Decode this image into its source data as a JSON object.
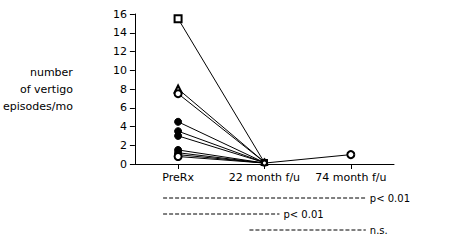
{
  "chart_data": {
    "type": "line",
    "categories": [
      "PreRx",
      "22 month f/u",
      "74 month f/u"
    ],
    "ylabel": [
      "number",
      "of vertigo",
      "episodes/mo"
    ],
    "ylim": [
      0,
      16
    ],
    "yticks": [
      0,
      2,
      4,
      6,
      8,
      10,
      12,
      14,
      16
    ],
    "grid": false,
    "color": "#000000",
    "series": [
      {
        "marker": "open-square",
        "values": [
          15.5,
          0.15,
          null
        ]
      },
      {
        "marker": "open-triangle",
        "values": [
          8.0,
          0.2,
          null
        ]
      },
      {
        "marker": "open-circle",
        "values": [
          7.5,
          0.2,
          null
        ]
      },
      {
        "marker": "filled-circle",
        "values": [
          4.5,
          0.15,
          null
        ]
      },
      {
        "marker": "filled-circle",
        "values": [
          3.5,
          0.15,
          null
        ]
      },
      {
        "marker": "filled-circle",
        "values": [
          3.0,
          0.15,
          null
        ]
      },
      {
        "marker": "filled-circle",
        "values": [
          1.5,
          0.1,
          null
        ]
      },
      {
        "marker": "filled-circle",
        "values": [
          1.2,
          0.1,
          null
        ]
      },
      {
        "marker": "filled-circle",
        "values": [
          1.0,
          0.1,
          null
        ]
      },
      {
        "marker": "open-circle",
        "values": [
          0.8,
          0.1,
          1.0
        ]
      }
    ],
    "annotations": [
      {
        "text": "p< 0.01",
        "from": "PreRx",
        "to": "74 month f/u"
      },
      {
        "text": "p< 0.01",
        "from": "PreRx",
        "to": "22 month f/u"
      },
      {
        "text": "n.s.",
        "from": "22 month f/u",
        "to": "74 month f/u"
      }
    ]
  }
}
